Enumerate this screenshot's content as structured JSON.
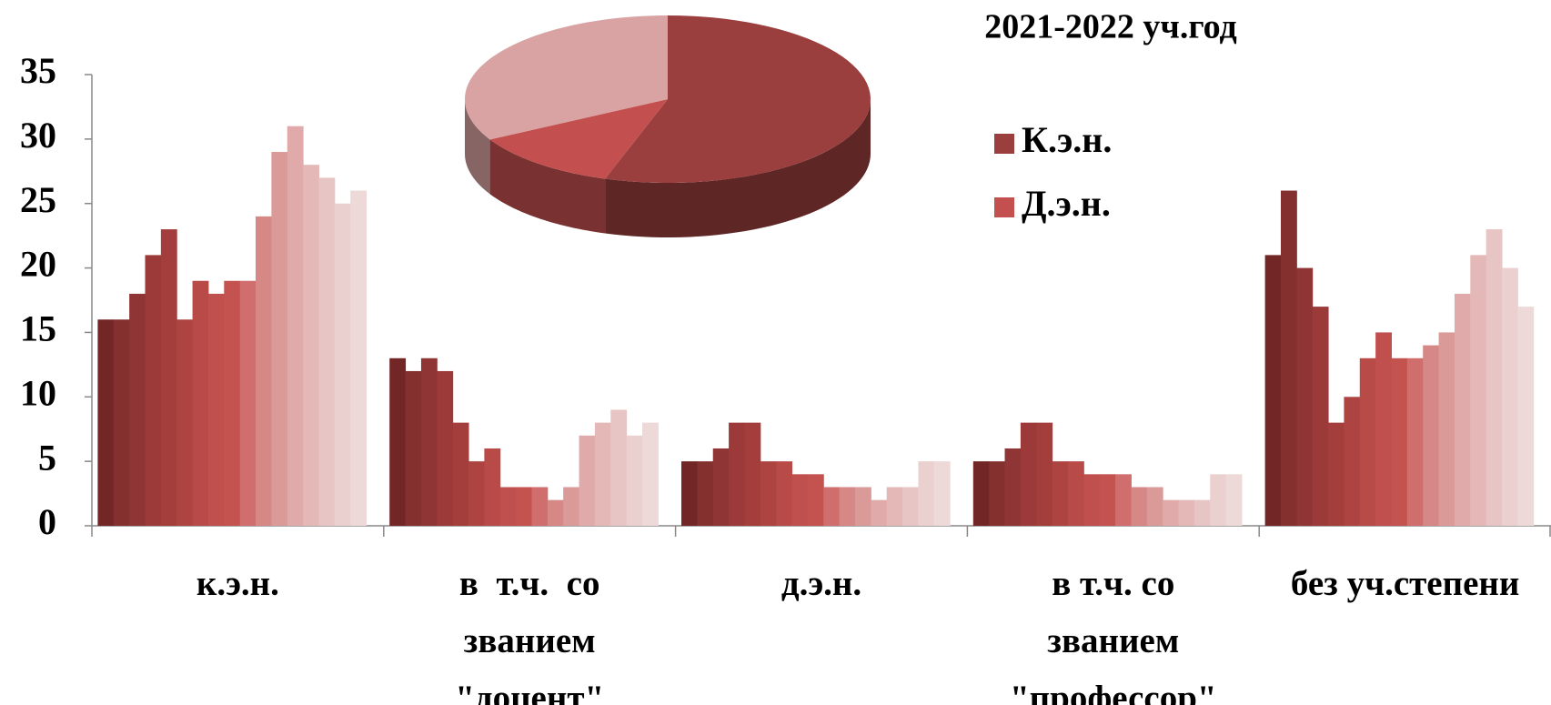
{
  "chart_data": [
    {
      "type": "bar",
      "categories": [
        "к.э.н.",
        "в  т.ч.  со\nзванием\n\"доцент\"",
        "д.э.н.",
        "в т.ч. со\nзванием\n\"профессор\"",
        "без уч.степени"
      ],
      "series": [
        {
          "color": "#722626",
          "values": [
            16,
            13,
            5,
            5,
            21
          ]
        },
        {
          "color": "#83302f",
          "values": [
            16,
            12,
            5,
            5,
            26
          ]
        },
        {
          "color": "#8f3535",
          "values": [
            18,
            13,
            6,
            6,
            20
          ]
        },
        {
          "color": "#9b3a39",
          "values": [
            21,
            12,
            8,
            8,
            17
          ]
        },
        {
          "color": "#a33e3c",
          "values": [
            23,
            8,
            8,
            8,
            8
          ]
        },
        {
          "color": "#ad4442",
          "values": [
            16,
            5,
            5,
            5,
            10
          ]
        },
        {
          "color": "#b84a47",
          "values": [
            19,
            6,
            5,
            5,
            13
          ]
        },
        {
          "color": "#c0504d",
          "values": [
            18,
            3,
            4,
            4,
            15
          ]
        },
        {
          "color": "#c4524f",
          "values": [
            19,
            3,
            4,
            4,
            13
          ]
        },
        {
          "color": "#cf6e6c",
          "values": [
            19,
            3,
            3,
            4,
            13
          ]
        },
        {
          "color": "#d58886",
          "values": [
            24,
            2,
            3,
            3,
            14
          ]
        },
        {
          "color": "#da9a98",
          "values": [
            29,
            3,
            3,
            3,
            15
          ]
        },
        {
          "color": "#dfaaa9",
          "values": [
            31,
            7,
            2,
            2,
            18
          ]
        },
        {
          "color": "#e3b8b7",
          "values": [
            28,
            8,
            3,
            2,
            21
          ]
        },
        {
          "color": "#e7c5c4",
          "values": [
            27,
            9,
            3,
            2,
            23
          ]
        },
        {
          "color": "#ebd0d0",
          "values": [
            25,
            7,
            5,
            4,
            20
          ]
        },
        {
          "color": "#eed9d9",
          "values": [
            26,
            8,
            5,
            4,
            17
          ]
        }
      ],
      "ylim": [
        0,
        35
      ],
      "yticks": [
        0,
        5,
        10,
        15,
        20,
        25,
        30,
        35
      ],
      "grid": false
    },
    {
      "type": "pie",
      "title": "2021-2022 уч.год",
      "categories": [
        "К.э.н.",
        "Д.э.н.",
        null
      ],
      "values": [
        55,
        12,
        33
      ],
      "colors": [
        "#9a3e3e",
        "#c44f4f",
        "#d9a3a3"
      ],
      "legend": "right"
    }
  ]
}
